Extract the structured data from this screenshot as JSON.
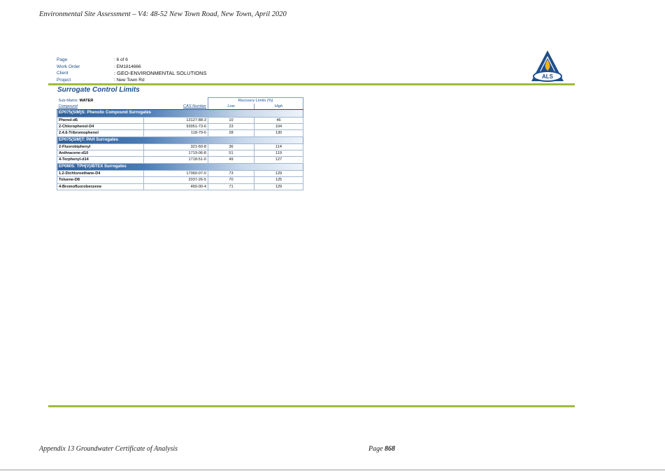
{
  "running_header": "Environmental Site Assessment – V4: 48-52 New Town Road, New Town, April 2020",
  "meta": [
    {
      "label": "Page",
      "value": ": 6 of 6"
    },
    {
      "label": "Work Order",
      "value": ": EM1814666"
    },
    {
      "label": "Client",
      "value": ": GEO-ENVIRONMENTAL SOLUTIONS"
    },
    {
      "label": "Project",
      "value": ": New Town Rd"
    }
  ],
  "logo_text": "ALS",
  "section_title": "Surrogate Control Limits",
  "table": {
    "submatrix_label": "Sub-Matrix:",
    "submatrix_value": "WATER",
    "recovery_limits_header": "Recovery Limits (%)",
    "col_compound": "Compound",
    "col_cas": "CAS Number",
    "col_low": "Low",
    "col_high": "High",
    "groups": [
      {
        "title": "EP075(SIM)S: Phenolic Compound Surrogates",
        "rows": [
          {
            "compound": "Phenol-d6",
            "cas": "13127-88-3",
            "low": "10",
            "high": "46"
          },
          {
            "compound": "2-Chlorophenol-D4",
            "cas": "93951-73-6",
            "low": "23",
            "high": "104"
          },
          {
            "compound": "2.4.6-Tribromophenol",
            "cas": "118-79-6",
            "low": "28",
            "high": "130"
          }
        ]
      },
      {
        "title": "EP075(SIM)T: PAH Surrogates",
        "rows": [
          {
            "compound": "2-Fluorobiphenyl",
            "cas": "321-60-8",
            "low": "36",
            "high": "114"
          },
          {
            "compound": "Anthracene-d10",
            "cas": "1719-06-8",
            "low": "51",
            "high": "119"
          },
          {
            "compound": "4-Terphenyl-d14",
            "cas": "1718-51-0",
            "low": "49",
            "high": "127"
          }
        ]
      },
      {
        "title": "EP080S: TPH(V)/BTEX Surrogates",
        "rows": [
          {
            "compound": "1.2-Dichloroethane-D4",
            "cas": "17060-07-0",
            "low": "73",
            "high": "129"
          },
          {
            "compound": "Toluene-D8",
            "cas": "2037-26-5",
            "low": "70",
            "high": "125"
          },
          {
            "compound": "4-Bromofluorobenzene",
            "cas": "460-00-4",
            "low": "71",
            "high": "129"
          }
        ]
      }
    ]
  },
  "footer_left": "Appendix 13 Groundwater Certificate of Analysis",
  "footer_page_prefix": "Page",
  "footer_page_number": "868",
  "colors": {
    "accent_blue": "#1f4e8c",
    "rule_green": "#9dbb3a"
  }
}
